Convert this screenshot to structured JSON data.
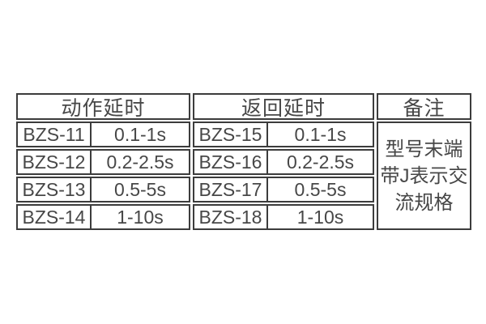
{
  "table": {
    "colors": {
      "background": "#ffffff",
      "border": "#3c3c3c",
      "text": "#474747"
    },
    "sections": [
      {
        "header": "动作延时",
        "rows": [
          {
            "model": "BZS-11",
            "value": "0.1-1s"
          },
          {
            "model": "BZS-12",
            "value": "0.2-2.5s"
          },
          {
            "model": "BZS-13",
            "value": "0.5-5s"
          },
          {
            "model": "BZS-14",
            "value": "1-10s"
          }
        ]
      },
      {
        "header": "返回延时",
        "rows": [
          {
            "model": "BZS-15",
            "value": "0.1-1s"
          },
          {
            "model": "BZS-16",
            "value": "0.2-2.5s"
          },
          {
            "model": "BZS-17",
            "value": "0.5-5s"
          },
          {
            "model": "BZS-18",
            "value": "1-10s"
          }
        ]
      }
    ],
    "remark": {
      "header": "备注",
      "lines": [
        "型号末端",
        "带J表示交",
        "流规格"
      ]
    }
  }
}
